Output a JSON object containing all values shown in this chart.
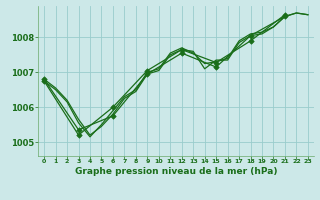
{
  "bg_color": "#cce8e8",
  "grid_color": "#99cccc",
  "line_color": "#1a6e1a",
  "marker_color": "#1a6e1a",
  "title": "Graphe pression niveau de la mer (hPa)",
  "xlim": [
    -0.5,
    23.5
  ],
  "ylim": [
    1004.6,
    1008.9
  ],
  "yticks": [
    1005,
    1006,
    1007,
    1008
  ],
  "xticks": [
    0,
    1,
    2,
    3,
    4,
    5,
    6,
    7,
    8,
    9,
    10,
    11,
    12,
    13,
    14,
    15,
    16,
    17,
    18,
    19,
    20,
    21,
    22,
    23
  ],
  "series": [
    {
      "x": [
        0,
        1,
        2,
        3,
        4,
        5,
        6,
        7,
        8,
        9,
        10,
        11,
        12,
        13,
        14,
        15,
        16,
        17,
        18,
        19,
        20,
        21,
        22,
        23
      ],
      "y": [
        1006.8,
        1006.55,
        1006.2,
        1005.65,
        1005.2,
        1005.45,
        1005.8,
        1006.25,
        1006.45,
        1006.95,
        1007.05,
        1007.5,
        1007.65,
        1007.6,
        1007.1,
        1007.35,
        1007.35,
        1007.85,
        1008.05,
        1008.1,
        1008.3,
        1008.6,
        1008.7,
        1008.65
      ],
      "has_markers": false,
      "lw": 0.9
    },
    {
      "x": [
        0,
        1,
        2,
        3,
        4,
        5,
        6,
        7,
        8,
        9,
        10,
        11,
        12,
        13,
        14,
        15,
        16,
        17,
        18,
        19,
        20,
        21,
        22,
        23
      ],
      "y": [
        1006.75,
        1006.5,
        1006.15,
        1005.55,
        1005.15,
        1005.5,
        1005.9,
        1006.3,
        1006.5,
        1007.0,
        1007.1,
        1007.55,
        1007.7,
        1007.55,
        1007.25,
        1007.3,
        1007.4,
        1007.9,
        1008.1,
        1008.15,
        1008.3,
        1008.6,
        1008.7,
        1008.65
      ],
      "has_markers": false,
      "lw": 0.9
    },
    {
      "x": [
        0,
        3,
        6,
        9,
        12,
        15,
        18,
        21
      ],
      "y": [
        1006.8,
        1005.35,
        1005.75,
        1006.95,
        1007.55,
        1007.15,
        1008.05,
        1008.6
      ],
      "has_markers": true,
      "lw": 0.9
    },
    {
      "x": [
        0,
        3,
        6,
        9,
        12,
        15,
        18,
        21
      ],
      "y": [
        1006.75,
        1005.2,
        1006.0,
        1007.05,
        1007.65,
        1007.28,
        1007.9,
        1008.65
      ],
      "has_markers": true,
      "lw": 0.9
    }
  ]
}
